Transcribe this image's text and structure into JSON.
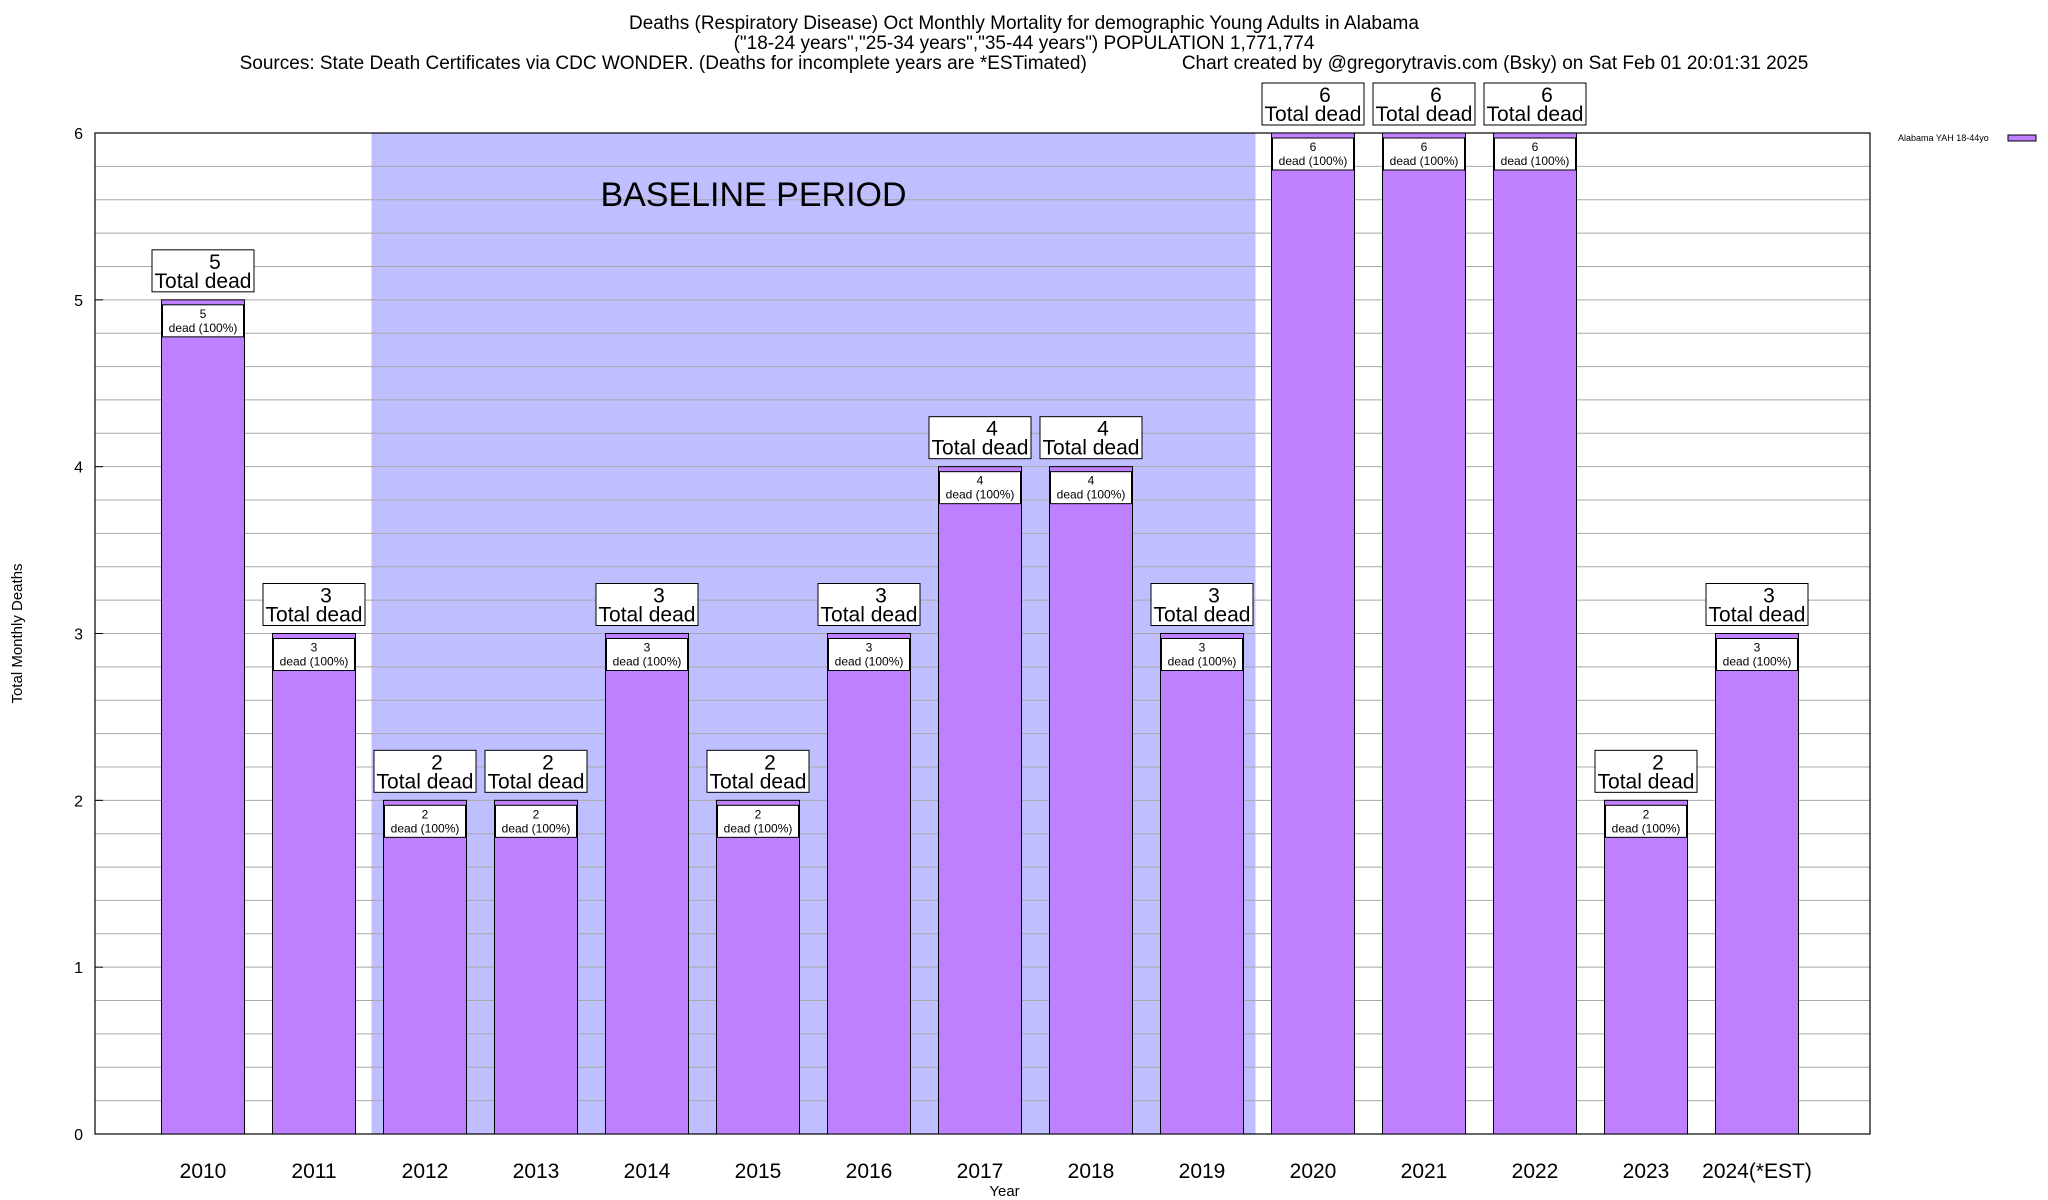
{
  "chart_data": {
    "type": "bar",
    "title": "Deaths (Respiratory Disease) Oct Monthly Mortality for demographic Young Adults in Alabama",
    "subtitle": "(\"18-24 years\",\"25-34 years\",\"35-44 years\") POPULATION 1,771,774",
    "sources": "Sources: State Death Certificates via CDC WONDER. (Deaths for incomplete years are *ESTimated)",
    "credit": "Chart created by @gregorytravis.com (Bsky) on Sat Feb 01 20:01:31 2025",
    "xlabel": "Year",
    "ylabel": "Total Monthly Deaths",
    "ylim": [
      0,
      6
    ],
    "yticks": [
      "0",
      "1",
      "2",
      "3",
      "4",
      "5",
      "6"
    ],
    "grid": true,
    "legend_position": "top-right",
    "series": [
      {
        "name": "Alabama YAH 18-44yo",
        "color": "#bf80ff",
        "values": [
          5,
          3,
          2,
          2,
          3,
          2,
          3,
          4,
          4,
          3,
          6,
          6,
          6,
          2,
          3
        ]
      }
    ],
    "categories": [
      "2010",
      "2011",
      "2012",
      "2013",
      "2014",
      "2015",
      "2016",
      "2017",
      "2018",
      "2019",
      "2020",
      "2021",
      "2022",
      "2023",
      "2024(*EST)"
    ],
    "total_label": "Total dead",
    "inner_label": "dead (100%)",
    "baseline": {
      "label": "BASELINE PERIOD",
      "start": "2012",
      "end": "2019",
      "color": "#bfbfff"
    }
  }
}
